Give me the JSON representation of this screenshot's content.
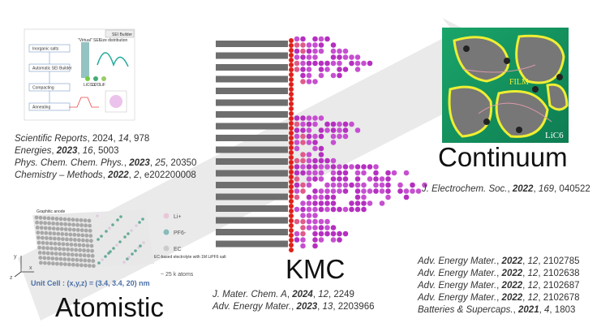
{
  "sei_builder": {
    "title": "SEI Builder",
    "steps": [
      "Inorganic salts",
      "Automatic SEI Builder",
      "Compacting",
      "Annealing"
    ],
    "virtual_sei": "\"Virtual\" SEI",
    "size_distribution": "Size distribution",
    "species": [
      "LiCO3",
      "Li2O",
      "LiF"
    ]
  },
  "left_refs": [
    [
      {
        "t": "Scientific Reports",
        "s": "i"
      },
      {
        "t": ", 2024, "
      },
      {
        "t": "14",
        "s": "i"
      },
      {
        "t": ", 978"
      }
    ],
    [
      {
        "t": "Energies",
        "s": "i"
      },
      {
        "t": ", "
      },
      {
        "t": "2023",
        "s": "b"
      },
      {
        "t": ", "
      },
      {
        "t": "16",
        "s": "i"
      },
      {
        "t": ", 5003"
      }
    ],
    [
      {
        "t": "Phys. Chem. Chem. Phys.",
        "s": "i"
      },
      {
        "t": ", "
      },
      {
        "t": "2023",
        "s": "b"
      },
      {
        "t": ", "
      },
      {
        "t": "25",
        "s": "i"
      },
      {
        "t": ", 20350"
      }
    ],
    [
      {
        "t": "Chemistry – Methods",
        "s": "i"
      },
      {
        "t": ", "
      },
      {
        "t": "2022",
        "s": "b"
      },
      {
        "t": ", "
      },
      {
        "t": "2",
        "s": "i"
      },
      {
        "t": ", e202200008"
      }
    ]
  ],
  "atomistic": {
    "label": "Atomistic",
    "anode": "Graphitic anode",
    "legend": [
      "Li+",
      "PF6-",
      "EC"
    ],
    "electrolyte": "EC-based electrolyte with 1M LiPF6 salt",
    "unit_cell": "Unit Cell : (x,y,z) = (3.4, 3.4, 20) nm",
    "atoms": "~ 25 k atoms",
    "axes": [
      "y",
      "x",
      "z"
    ]
  },
  "kmc": {
    "label": "KMC",
    "refs": [
      [
        {
          "t": "J. Mater. Chem. A",
          "s": "i"
        },
        {
          "t": ", "
        },
        {
          "t": "2024",
          "s": "b"
        },
        {
          "t": ", "
        },
        {
          "t": "12",
          "s": "i"
        },
        {
          "t": ", 2249"
        }
      ],
      [
        {
          "t": "Adv. Energy Mater.",
          "s": "i"
        },
        {
          "t": ", "
        },
        {
          "t": "2023",
          "s": "b"
        },
        {
          "t": ", "
        },
        {
          "t": "13",
          "s": "i"
        },
        {
          "t": ", 2203966"
        }
      ]
    ]
  },
  "continuum": {
    "label": "Continuum",
    "film": "FILM",
    "electrode": "LiC6",
    "refs": [
      [
        {
          "t": "J. Electrochem. Soc.",
          "s": "i"
        },
        {
          "t": ", "
        },
        {
          "t": "2022",
          "s": "b"
        },
        {
          "t": ", "
        },
        {
          "t": "169",
          "s": "i"
        },
        {
          "t": ", 040522"
        }
      ]
    ]
  },
  "right_refs": [
    [
      {
        "t": "Adv. Energy Mater.",
        "s": "i"
      },
      {
        "t": ", "
      },
      {
        "t": "2022",
        "s": "b"
      },
      {
        "t": ", "
      },
      {
        "t": "12",
        "s": "i"
      },
      {
        "t": ", 2102785"
      }
    ],
    [
      {
        "t": "Adv. Energy Mater.",
        "s": "i"
      },
      {
        "t": ", "
      },
      {
        "t": "2022",
        "s": "b"
      },
      {
        "t": ", "
      },
      {
        "t": "12",
        "s": "i"
      },
      {
        "t": ", 2102638"
      }
    ],
    [
      {
        "t": "Adv. Energy Mater.",
        "s": "i"
      },
      {
        "t": ", "
      },
      {
        "t": "2022",
        "s": "b"
      },
      {
        "t": ", "
      },
      {
        "t": "12",
        "s": "i"
      },
      {
        "t": ", 2102687"
      }
    ],
    [
      {
        "t": "Adv. Energy Mater.",
        "s": "i"
      },
      {
        "t": ", "
      },
      {
        "t": "2022",
        "s": "b"
      },
      {
        "t": ", "
      },
      {
        "t": "12",
        "s": "i"
      },
      {
        "t": ", 2102678"
      }
    ],
    [
      {
        "t": "Batteries & Supercaps.",
        "s": "i"
      },
      {
        "t": ", "
      },
      {
        "t": "2021",
        "s": "b"
      },
      {
        "t": ", "
      },
      {
        "t": "4",
        "s": "i"
      },
      {
        "t": ", 1803"
      }
    ]
  ]
}
